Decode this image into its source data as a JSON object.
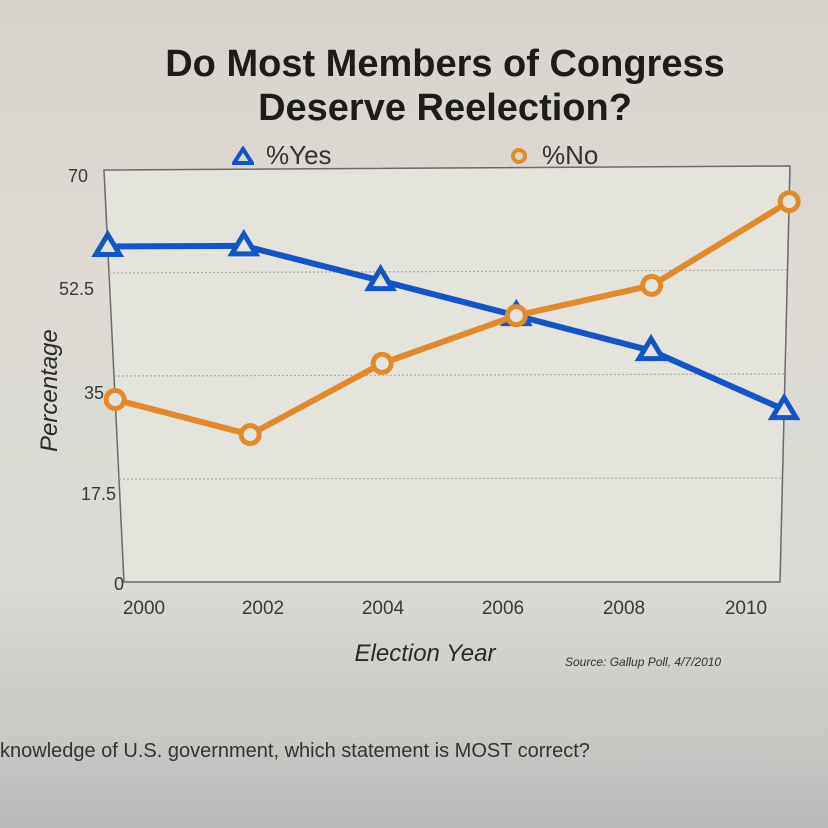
{
  "chart_data": {
    "type": "line",
    "title": "Do Most Members of Congress Deserve Reelection?",
    "title_lines": [
      "Do Most Members of Congress",
      "Deserve Reelection?"
    ],
    "xlabel": "Election Year",
    "ylabel": "Percentage",
    "x": [
      2000,
      2002,
      2004,
      2006,
      2008,
      2010
    ],
    "x_tick_labels": [
      "2000",
      "2002",
      "2004",
      "2006",
      "2008",
      "2010"
    ],
    "y_tick_labels": [
      "70",
      "52.5",
      "35",
      "17.5",
      "0"
    ],
    "y_ticks": [
      70,
      52.5,
      35,
      17.5,
      0
    ],
    "ylim": [
      0,
      70
    ],
    "xlim": [
      2000,
      2010
    ],
    "grid": true,
    "legend_position": "top",
    "series": [
      {
        "name": "%Yes",
        "marker": "triangle",
        "color": "#1553c9",
        "values": [
          57,
          57,
          51,
          45,
          39,
          29
        ]
      },
      {
        "name": "%No",
        "marker": "circle",
        "color": "#e08a2c",
        "values": [
          31,
          25,
          37,
          45,
          50,
          64
        ]
      }
    ],
    "annotation": "Source: Gallup Poll, 4/7/2010"
  },
  "question_text": "knowledge of U.S. government, which statement is MOST correct?"
}
